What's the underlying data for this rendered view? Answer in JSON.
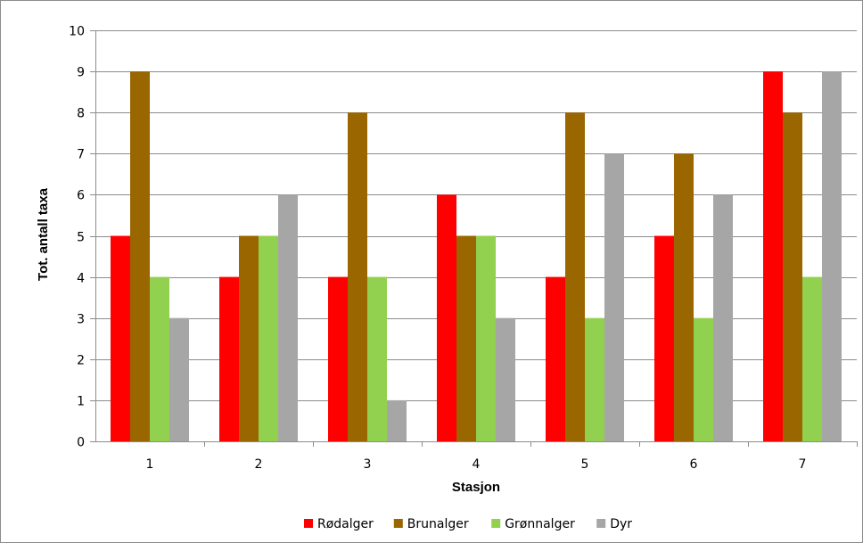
{
  "chart_data": {
    "type": "bar",
    "title": "",
    "xlabel": "Stasjon",
    "ylabel": "Tot. antall taxa",
    "categories": [
      "1",
      "2",
      "3",
      "4",
      "5",
      "6",
      "7"
    ],
    "ylim": [
      0,
      10
    ],
    "yticks": [
      "0",
      "1",
      "2",
      "3",
      "4",
      "5",
      "6",
      "7",
      "8",
      "9",
      "10"
    ],
    "grid": "horizontal",
    "legend_position": "bottom",
    "series": [
      {
        "name": "Rødalger",
        "color": "#ff0000",
        "values": [
          5,
          4,
          4,
          6,
          4,
          5,
          9
        ]
      },
      {
        "name": "Brunalger",
        "color": "#996600",
        "values": [
          9,
          5,
          8,
          5,
          8,
          7,
          8
        ]
      },
      {
        "name": "Grønnalger",
        "color": "#92d050",
        "values": [
          4,
          5,
          4,
          5,
          3,
          3,
          4
        ]
      },
      {
        "name": "Dyr",
        "color": "#a6a6a6",
        "values": [
          3,
          6,
          1,
          3,
          7,
          6,
          9
        ]
      }
    ]
  }
}
